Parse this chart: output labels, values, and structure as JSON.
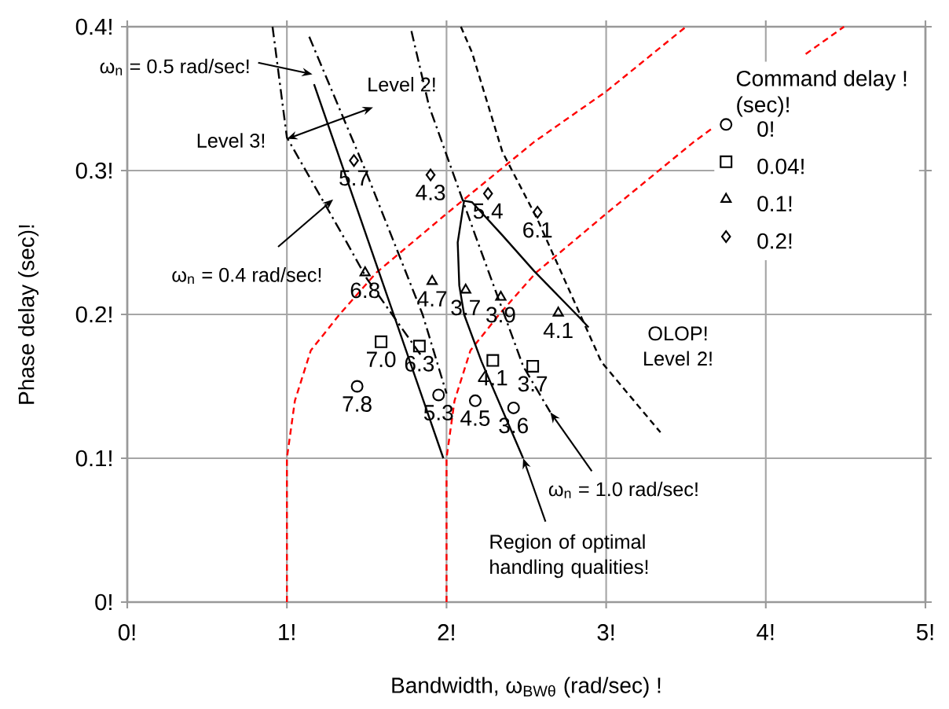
{
  "chart_data": {
    "type": "scatter",
    "xlabel": "Bandwidth, ω$_{BWθ}$ (rad/sec) !",
    "ylabel": "Phase delay (sec)!",
    "legend_title": "Command delay ! (sec)!",
    "xlim": [
      0,
      5
    ],
    "ylim": [
      0,
      0.4
    ],
    "xticks": [
      {
        "value": 0,
        "label": "0!"
      },
      {
        "value": 1,
        "label": "1!"
      },
      {
        "value": 2,
        "label": "2!"
      },
      {
        "value": 3,
        "label": "3!"
      },
      {
        "value": 4,
        "label": "4!"
      },
      {
        "value": 5,
        "label": "5!"
      }
    ],
    "yticks": [
      {
        "value": 0,
        "label": "0!"
      },
      {
        "value": 0.1,
        "label": "0.1!"
      },
      {
        "value": 0.2,
        "label": "0.2!"
      },
      {
        "value": 0.3,
        "label": "0.3!"
      },
      {
        "value": 0.4,
        "label": "0.4!"
      }
    ],
    "grid": true,
    "legend": "top right",
    "series": [
      {
        "type": "scatter",
        "name": "0!",
        "marker": "circle",
        "color": "#000000",
        "x": [
          1.44,
          1.95,
          2.18,
          2.42
        ],
        "values": [
          0.15,
          0.144,
          0.14,
          0.135
        ]
      },
      {
        "type": "scatter",
        "name": "0.04!",
        "marker": "square",
        "color": "#000000",
        "x": [
          1.59,
          1.83,
          2.29,
          2.54
        ],
        "values": [
          0.181,
          0.178,
          0.168,
          0.164
        ]
      },
      {
        "type": "scatter",
        "name": "0.1!",
        "marker": "triangle",
        "color": "#000000",
        "x": [
          1.49,
          1.91,
          2.12,
          2.34,
          2.7
        ],
        "values": [
          0.229,
          0.223,
          0.217,
          0.212,
          0.201
        ]
      },
      {
        "type": "scatter",
        "name": "0.2!",
        "marker": "diamond",
        "color": "#000000",
        "x": [
          1.42,
          1.9,
          2.26,
          2.57
        ],
        "values": [
          0.307,
          0.297,
          0.284,
          0.271
        ]
      },
      {
        "type": "line",
        "color": "#ff0000",
        "line_style": "dashed",
        "x": [
          1,
          1,
          1.05,
          1.15,
          1.33,
          1.56,
          2.0,
          2.55,
          3.0,
          3.5
        ],
        "values": [
          0,
          0.1,
          0.14,
          0.175,
          0.2,
          0.229,
          0.27,
          0.32,
          0.355,
          0.4
        ]
      },
      {
        "type": "line",
        "color": "#ff0000",
        "line_style": "dashed",
        "x": [
          2,
          2,
          2.05,
          2.15,
          2.33,
          2.56,
          3.0,
          3.55,
          3.66,
          4.0,
          4.25,
          4.49
        ],
        "values": [
          0,
          0.1,
          0.14,
          0.175,
          0.2,
          0.229,
          0.27,
          0.32,
          0.329,
          null,
          0.381,
          0.4
        ]
      },
      {
        "type": "line",
        "color": "#000000",
        "line_style": "dashdot",
        "x": [
          0.91,
          1.0,
          1.37,
          1.5,
          1.85
        ],
        "values": [
          0.4,
          0.323,
          0.251,
          0.225,
          0.17
        ]
      },
      {
        "type": "line",
        "color": "#000000",
        "line_style": "solid",
        "x": [
          1.17,
          1.98
        ],
        "values": [
          0.36,
          0.1
        ]
      },
      {
        "type": "line",
        "color": "#000000",
        "line_style": "dashdot",
        "x": [
          1.14,
          1.5,
          1.85,
          2.0
        ],
        "values": [
          0.393,
          0.298,
          0.2,
          0.145
        ]
      },
      {
        "type": "line",
        "color": "#000000",
        "line_style": "dashdot",
        "x": [
          1.78,
          1.89,
          2.18,
          2.48,
          2.65
        ],
        "values": [
          0.397,
          0.345,
          0.255,
          0.164,
          0.132
        ]
      },
      {
        "type": "line",
        "color": "#000000",
        "line_style": "dashed",
        "x": [
          2.09,
          2.16,
          2.35,
          2.57,
          2.97,
          3.34
        ],
        "values": [
          0.4,
          0.382,
          0.313,
          0.266,
          0.167,
          0.118
        ]
      },
      {
        "type": "line",
        "color": "#000000",
        "line_style": "solid",
        "x": [
          2.48,
          2.22,
          2.11,
          2.08,
          2.07,
          2.11,
          2.16,
          2.35,
          2.55,
          2.84,
          2.89
        ],
        "values": [
          0.1,
          0.167,
          0.2,
          0.22,
          0.25,
          0.279,
          0.278,
          0.255,
          0.23,
          0.197,
          0.191
        ]
      }
    ],
    "annotations": [
      "ω$_{n}$ = 0.5 rad/sec!",
      "Level 2!",
      {
        "text": "Level 3!",
        "x": 1.0,
        "y": 0.322
      },
      "ω$_{n}$ = 0.4 rad/sec!",
      "OLOP! Level 2!",
      {
        "text": "ω$_{n}$ = 1.0 rad/sec!",
        "x": 2.65,
        "y": 0.132
      },
      {
        "text": "Region of optimal handling qualities!",
        "x": 2.48,
        "y": 0.1
      },
      {
        "text": "7.8",
        "x": 1.44,
        "y": 0.15
      },
      {
        "text": "5.3",
        "x": 1.95,
        "y": 0.144
      },
      {
        "text": "4.5",
        "x": 2.18,
        "y": 0.14
      },
      {
        "text": "3.6",
        "x": 2.42,
        "y": 0.135
      },
      {
        "text": "7.0",
        "x": 1.59,
        "y": 0.181
      },
      {
        "text": "6.3",
        "x": 1.83,
        "y": 0.178
      },
      {
        "text": "4.1",
        "x": 2.29,
        "y": 0.168
      },
      {
        "text": "3.7",
        "x": 2.54,
        "y": 0.164
      },
      {
        "text": "6.8",
        "x": 1.49,
        "y": 0.229
      },
      {
        "text": "4.7",
        "x": 1.91,
        "y": 0.223
      },
      {
        "text": "3.7",
        "x": 2.12,
        "y": 0.217
      },
      {
        "text": "3.9",
        "x": 2.34,
        "y": 0.212
      },
      {
        "text": "4.1",
        "x": 2.7,
        "y": 0.201
      },
      {
        "text": "5.7",
        "x": 1.42,
        "y": 0.307
      },
      {
        "text": "4.3",
        "x": 1.9,
        "y": 0.297
      },
      {
        "text": "5.4",
        "x": 2.26,
        "y": 0.284
      },
      {
        "text": "6.1",
        "x": 2.57,
        "y": 0.271
      }
    ]
  }
}
